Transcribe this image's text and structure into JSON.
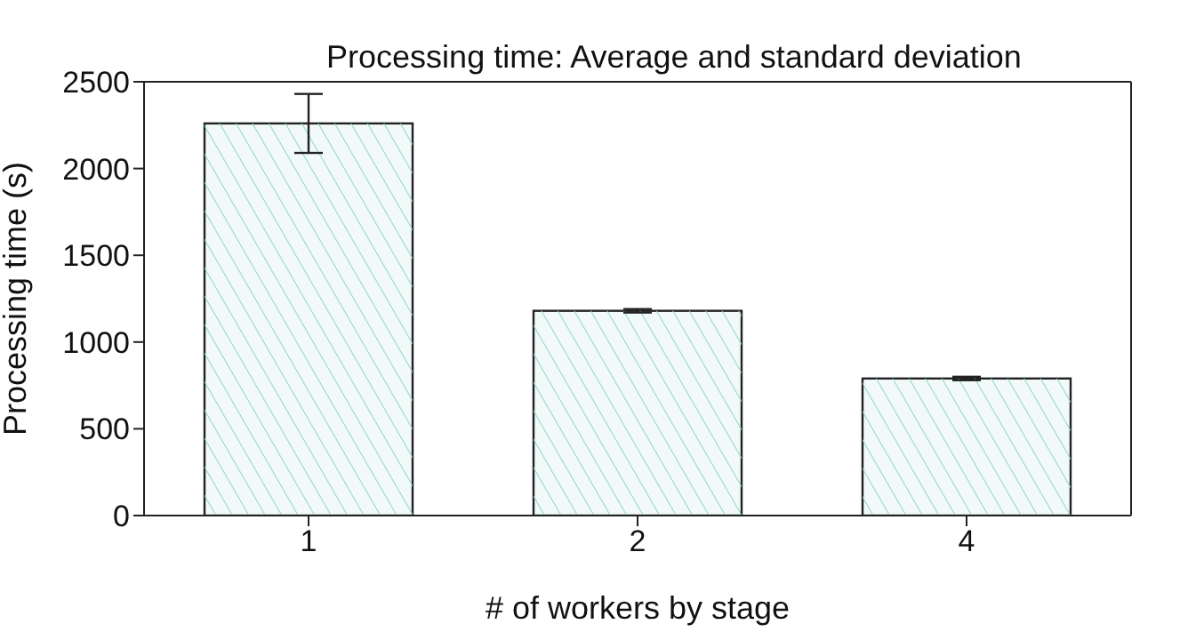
{
  "chart_data": {
    "type": "bar",
    "title": "Processing time: Average and standard deviation",
    "xlabel": "# of workers by stage",
    "ylabel": "Processing time (s)",
    "categories": [
      "1",
      "2",
      "4"
    ],
    "series": [
      {
        "color": "#8fd6cc",
        "values": [
          2260,
          1180,
          790
        ],
        "errors": [
          170,
          10,
          10
        ]
      }
    ],
    "ylim": [
      0,
      2500
    ],
    "yticks": [
      0,
      500,
      1000,
      1500,
      2000,
      2500
    ]
  }
}
